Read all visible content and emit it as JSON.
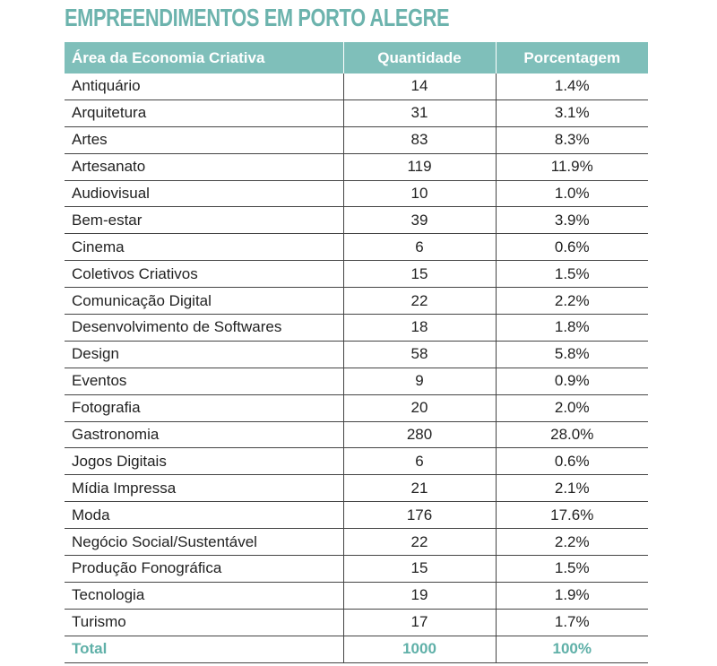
{
  "title": "EMPREENDIMENTOS EM PORTO ALEGRE",
  "table": {
    "header": [
      "Área da Economia Criativa",
      "Quantidade",
      "Porcentagem"
    ],
    "rows": [
      [
        "Antiquário",
        "14",
        "1.4%"
      ],
      [
        "Arquitetura",
        "31",
        "3.1%"
      ],
      [
        "Artes",
        "83",
        "8.3%"
      ],
      [
        "Artesanato",
        "119",
        "11.9%"
      ],
      [
        "Audiovisual",
        "10",
        "1.0%"
      ],
      [
        "Bem-estar",
        "39",
        "3.9%"
      ],
      [
        "Cinema",
        "6",
        "0.6%"
      ],
      [
        "Coletivos Criativos",
        "15",
        "1.5%"
      ],
      [
        "Comunicação Digital",
        "22",
        "2.2%"
      ],
      [
        "Desenvolvimento de Softwares",
        "18",
        "1.8%"
      ],
      [
        "Design",
        "58",
        "5.8%"
      ],
      [
        "Eventos",
        "9",
        "0.9%"
      ],
      [
        "Fotografia",
        "20",
        "2.0%"
      ],
      [
        "Gastronomia",
        "280",
        "28.0%"
      ],
      [
        "Jogos Digitais",
        "6",
        "0.6%"
      ],
      [
        "Mídia Impressa",
        "21",
        "2.1%"
      ],
      [
        "Moda",
        "176",
        "17.6%"
      ],
      [
        "Negócio Social/Sustentável",
        "22",
        "2.2%"
      ],
      [
        "Produção Fonográfica",
        "15",
        "1.5%"
      ],
      [
        "Tecnologia",
        "19",
        "1.9%"
      ],
      [
        "Turismo",
        "17",
        "1.7%"
      ]
    ],
    "total": [
      "Total",
      "1000",
      "100%"
    ]
  }
}
